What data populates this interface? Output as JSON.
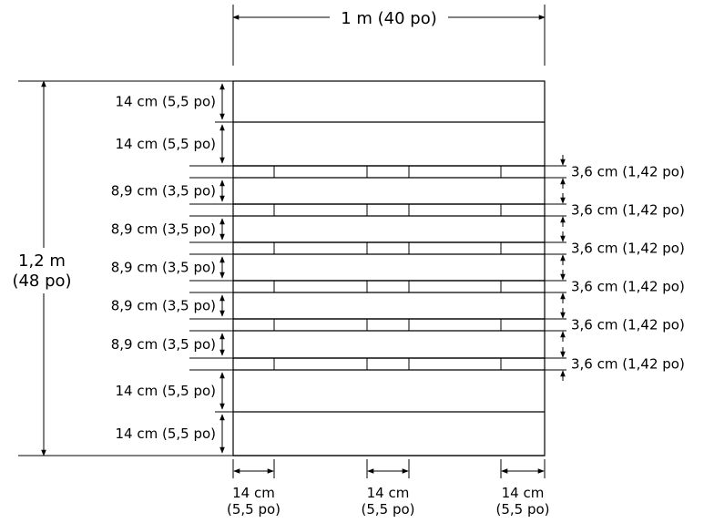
{
  "width_label": "1 m (40 po)",
  "height_label_line1": "1,2 m",
  "height_label_line2": "(48 po)",
  "left_labels": [
    "14 cm (5,5 po)",
    "14 cm (5,5 po)",
    "8,9 cm (3,5 po)",
    "8,9 cm (3,5 po)",
    "8,9 cm (3,5 po)",
    "8,9 cm (3,5 po)",
    "8,9 cm (3,5 po)",
    "14 cm (5,5 po)",
    "14 cm (5,5 po)"
  ],
  "right_labels": [
    "3,6 cm (1,42 po)",
    "3,6 cm (1,42 po)",
    "3,6 cm (1,42 po)",
    "3,6 cm (1,42 po)",
    "3,6 cm (1,42 po)",
    "3,6 cm (1,42 po)"
  ],
  "bottom_labels": [
    {
      "line1": "14 cm",
      "line2": "(5,5 po)"
    },
    {
      "line1": "14 cm",
      "line2": "(5,5 po)"
    },
    {
      "line1": "14 cm",
      "line2": "(5,5 po)"
    }
  ]
}
